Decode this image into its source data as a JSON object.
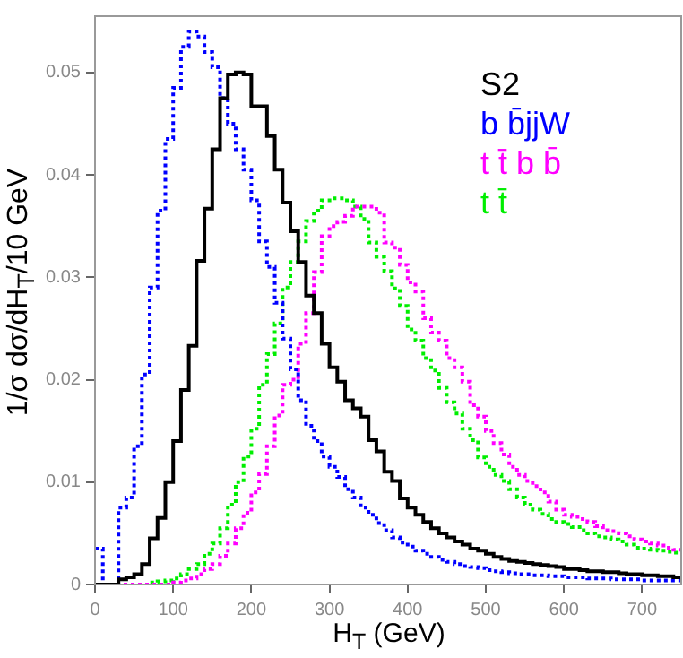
{
  "chart_data": {
    "type": "histogram",
    "xlabel": "H$_{T}$ (GeV)",
    "ylabel": "1/σ  dσ/dH$_{T}$/10 GeV",
    "bins": [
      0,
      10,
      20,
      30,
      40,
      50,
      60,
      70,
      80,
      90,
      100,
      110,
      120,
      130,
      140,
      150,
      160,
      170,
      180,
      190,
      200,
      210,
      220,
      230,
      240,
      250,
      260,
      270,
      280,
      290,
      300,
      310,
      320,
      330,
      340,
      350,
      360,
      370,
      380,
      390,
      400,
      410,
      420,
      430,
      440,
      450,
      460,
      470,
      480,
      490,
      500,
      510,
      520,
      530,
      540,
      550,
      560,
      570,
      580,
      590,
      600,
      610,
      620,
      630,
      640,
      650,
      660,
      670,
      680,
      690,
      700,
      710,
      720,
      730,
      740,
      750
    ],
    "series": [
      {
        "name": "S2",
        "color": "#000000",
        "line_style": "solid",
        "values": [
          0,
          0,
          0,
          0.0005,
          0.0007,
          0.001,
          0.002,
          0.0045,
          0.0065,
          0.01,
          0.014,
          0.019,
          0.0233,
          0.0316,
          0.0367,
          0.0425,
          0.0475,
          0.0498,
          0.05,
          0.0498,
          0.0467,
          0.0467,
          0.0438,
          0.0405,
          0.0373,
          0.0345,
          0.0315,
          0.0282,
          0.0265,
          0.0235,
          0.0212,
          0.0198,
          0.018,
          0.0172,
          0.0164,
          0.0141,
          0.013,
          0.011,
          0.0101,
          0.0084,
          0.0075,
          0.0068,
          0.0061,
          0.0055,
          0.005,
          0.0046,
          0.0042,
          0.0039,
          0.0035,
          0.0033,
          0.003,
          0.0027,
          0.0025,
          0.0023,
          0.0022,
          0.0021,
          0.002,
          0.0019,
          0.0018,
          0.0017,
          0.0015,
          0.0015,
          0.0014,
          0.0013,
          0.0013,
          0.0012,
          0.0012,
          0.0011,
          0.001,
          0.001,
          0.0009,
          0.0009,
          0.0008,
          0.0008,
          0.0007
        ]
      },
      {
        "name": "b b̄jjW",
        "color": "#0000ff",
        "line_style": "dotted",
        "values": [
          0.0035,
          0,
          0,
          0.0075,
          0.0085,
          0.0135,
          0.0205,
          0.029,
          0.0365,
          0.0435,
          0.0485,
          0.0525,
          0.054,
          0.0535,
          0.052,
          0.0505,
          0.0475,
          0.045,
          0.0425,
          0.0405,
          0.0375,
          0.0335,
          0.031,
          0.0275,
          0.024,
          0.021,
          0.018,
          0.0155,
          0.014,
          0.0125,
          0.0115,
          0.0105,
          0.0093,
          0.0085,
          0.0075,
          0.0068,
          0.006,
          0.0053,
          0.0046,
          0.0041,
          0.0037,
          0.0033,
          0.003,
          0.0027,
          0.0024,
          0.0022,
          0.002,
          0.0018,
          0.0017,
          0.0016,
          0.0014,
          0.0013,
          0.0012,
          0.0011,
          0.001,
          0.001,
          0.0009,
          0.0009,
          0.0008,
          0.0008,
          0.0007,
          0.0007,
          0.0007,
          0.0006,
          0.0006,
          0.0006,
          0.0005,
          0.0005,
          0.0005,
          0.0005,
          0.0004,
          0.0004,
          0.0004,
          0.0004,
          0.0004
        ]
      },
      {
        "name": "t t̄ b b̄",
        "color": "#ff00ff",
        "line_style": "dotted",
        "values": [
          0,
          0,
          0,
          0,
          0,
          0,
          0,
          0,
          0,
          0,
          0.0002,
          0.0004,
          0.0006,
          0.001,
          0.0015,
          0.002,
          0.0028,
          0.004,
          0.0055,
          0.007,
          0.009,
          0.0108,
          0.0135,
          0.0165,
          0.0195,
          0.02,
          0.0235,
          0.0265,
          0.0305,
          0.034,
          0.035,
          0.0354,
          0.036,
          0.0369,
          0.0369,
          0.0369,
          0.0363,
          0.0334,
          0.0329,
          0.0312,
          0.0295,
          0.0286,
          0.026,
          0.0246,
          0.0238,
          0.0221,
          0.0212,
          0.0198,
          0.0175,
          0.0164,
          0.015,
          0.0138,
          0.0127,
          0.0115,
          0.0107,
          0.0101,
          0.0096,
          0.009,
          0.0081,
          0.0073,
          0.0068,
          0.0066,
          0.0064,
          0.0061,
          0.0057,
          0.0053,
          0.0052,
          0.005,
          0.0047,
          0.0044,
          0.0042,
          0.004,
          0.0038,
          0.0036,
          0.0034
        ]
      },
      {
        "name": "t t̄",
        "color": "#00ee00",
        "line_style": "dotted",
        "values": [
          0,
          0,
          0,
          0,
          0,
          0,
          0,
          0.0002,
          0.0003,
          0.0004,
          0.0006,
          0.001,
          0.0015,
          0.002,
          0.003,
          0.004,
          0.0055,
          0.0078,
          0.01,
          0.0125,
          0.0152,
          0.0195,
          0.0225,
          0.0255,
          0.029,
          0.0315,
          0.0335,
          0.0355,
          0.0365,
          0.0375,
          0.0377,
          0.0377,
          0.0375,
          0.0369,
          0.0357,
          0.0334,
          0.032,
          0.0306,
          0.0289,
          0.0272,
          0.0249,
          0.0238,
          0.0221,
          0.0209,
          0.0192,
          0.0178,
          0.0167,
          0.0152,
          0.0141,
          0.0124,
          0.0115,
          0.0107,
          0.0101,
          0.0093,
          0.0085,
          0.0078,
          0.0073,
          0.0069,
          0.0064,
          0.0061,
          0.0059,
          0.0056,
          0.0053,
          0.005,
          0.0047,
          0.0046,
          0.0044,
          0.0042,
          0.0039,
          0.0036,
          0.0035,
          0.0034,
          0.0033,
          0.0032,
          0.0031
        ]
      }
    ],
    "xlim": [
      0,
      750
    ],
    "xticks": [
      0,
      100,
      200,
      300,
      400,
      500,
      600,
      700
    ],
    "ylim": [
      0,
      0.0555
    ],
    "yticks": [
      0,
      0.01,
      0.02,
      0.03,
      0.04,
      0.05
    ],
    "grid": false,
    "legend": "top right"
  }
}
